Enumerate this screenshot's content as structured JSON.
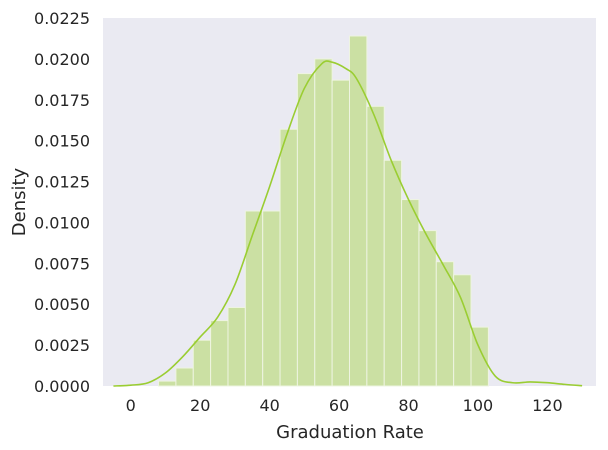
{
  "chart_data": {
    "type": "bar",
    "title": "",
    "xlabel": "Graduation Rate",
    "ylabel": "Density",
    "xlim": [
      -8,
      134
    ],
    "ylim": [
      0,
      0.0225
    ],
    "grid": false,
    "x_ticks": [
      0,
      20,
      40,
      60,
      80,
      100,
      120
    ],
    "y_ticks": [
      0.0,
      0.0025,
      0.005,
      0.0075,
      0.01,
      0.0125,
      0.015,
      0.0175,
      0.02,
      0.0225
    ],
    "y_tick_labels": [
      "0.0000",
      "0.0025",
      "0.0050",
      "0.0075",
      "0.0100",
      "0.0125",
      "0.0150",
      "0.0175",
      "0.0200",
      "0.0225"
    ],
    "colors": {
      "plot_background": "#EAEAF2",
      "bar_fill": "#CBE0A3",
      "bar_edge": "#EEF4E1",
      "kde_line": "#9ACD32"
    },
    "bins": [
      {
        "x0": 8.0,
        "x1": 13.0,
        "density": 0.0003
      },
      {
        "x0": 13.0,
        "x1": 18.0,
        "density": 0.0011
      },
      {
        "x0": 18.0,
        "x1": 23.0,
        "density": 0.0028
      },
      {
        "x0": 23.0,
        "x1": 28.0,
        "density": 0.004
      },
      {
        "x0": 28.0,
        "x1": 33.0,
        "density": 0.0048
      },
      {
        "x0": 33.0,
        "x1": 38.0,
        "density": 0.0107
      },
      {
        "x0": 38.0,
        "x1": 43.0,
        "density": 0.0107
      },
      {
        "x0": 43.0,
        "x1": 48.0,
        "density": 0.0157
      },
      {
        "x0": 48.0,
        "x1": 53.0,
        "density": 0.0191
      },
      {
        "x0": 53.0,
        "x1": 58.0,
        "density": 0.02
      },
      {
        "x0": 58.0,
        "x1": 63.0,
        "density": 0.0187
      },
      {
        "x0": 63.0,
        "x1": 68.0,
        "density": 0.0214
      },
      {
        "x0": 68.0,
        "x1": 73.0,
        "density": 0.0171
      },
      {
        "x0": 73.0,
        "x1": 78.0,
        "density": 0.0138
      },
      {
        "x0": 78.0,
        "x1": 83.0,
        "density": 0.0114
      },
      {
        "x0": 83.0,
        "x1": 88.0,
        "density": 0.0095
      },
      {
        "x0": 88.0,
        "x1": 93.0,
        "density": 0.0076
      },
      {
        "x0": 93.0,
        "x1": 98.0,
        "density": 0.0068
      },
      {
        "x0": 98.0,
        "x1": 103.0,
        "density": 0.0036
      }
    ],
    "kde": {
      "x": [
        -5,
        0,
        5,
        10,
        15,
        20,
        25,
        30,
        35,
        40,
        45,
        50,
        55,
        58,
        62,
        65,
        70,
        75,
        80,
        85,
        90,
        95,
        100,
        105,
        110,
        115,
        120,
        125,
        130
      ],
      "y": [
        0.0,
        5e-05,
        0.0002,
        0.0008,
        0.0018,
        0.003,
        0.0042,
        0.0062,
        0.0092,
        0.0122,
        0.0154,
        0.0182,
        0.0197,
        0.0198,
        0.0194,
        0.0188,
        0.0166,
        0.0138,
        0.0114,
        0.0093,
        0.0074,
        0.0054,
        0.0025,
        0.0006,
        0.0002,
        0.00025,
        0.0002,
        0.0001,
        2e-05
      ]
    }
  }
}
